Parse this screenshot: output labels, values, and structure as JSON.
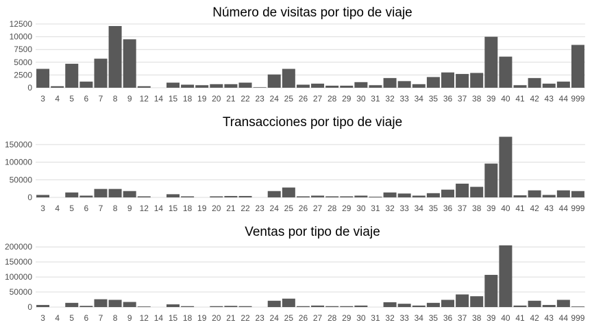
{
  "chart_data": [
    {
      "type": "bar",
      "title": "Número de visitas por tipo de viaje",
      "xlabel": "",
      "ylabel": "",
      "ylim": [
        0,
        12500
      ],
      "yticks": [
        0,
        2500,
        5000,
        7500,
        10000,
        12500
      ],
      "ytick_labels": [
        "0",
        "2500",
        "5000",
        "7500",
        "10000",
        "12500"
      ],
      "grid": true,
      "bar_color": "#595959",
      "categories": [
        "3",
        "4",
        "5",
        "6",
        "7",
        "8",
        "9",
        "12",
        "14",
        "15",
        "18",
        "19",
        "20",
        "21",
        "22",
        "23",
        "24",
        "25",
        "26",
        "27",
        "28",
        "29",
        "30",
        "31",
        "32",
        "33",
        "34",
        "35",
        "36",
        "37",
        "38",
        "39",
        "40",
        "41",
        "42",
        "43",
        "44",
        "999"
      ],
      "values": [
        3700,
        300,
        4700,
        1200,
        5700,
        12100,
        9500,
        300,
        0,
        1000,
        600,
        500,
        700,
        700,
        1000,
        100,
        2600,
        3700,
        600,
        800,
        400,
        400,
        1100,
        500,
        1900,
        1300,
        700,
        2100,
        3000,
        2700,
        2900,
        10000,
        6100,
        500,
        1900,
        800,
        1200,
        8400
      ]
    },
    {
      "type": "bar",
      "title": "Transacciones por tipo de viaje",
      "xlabel": "",
      "ylabel": "",
      "ylim": [
        0,
        175000
      ],
      "yticks": [
        0,
        50000,
        100000,
        150000
      ],
      "ytick_labels": [
        "0",
        "50000",
        "100000",
        "150000"
      ],
      "grid": true,
      "bar_color": "#595959",
      "categories": [
        "3",
        "4",
        "5",
        "6",
        "7",
        "8",
        "9",
        "12",
        "14",
        "15",
        "18",
        "19",
        "20",
        "21",
        "22",
        "23",
        "24",
        "25",
        "26",
        "27",
        "28",
        "29",
        "30",
        "31",
        "32",
        "33",
        "34",
        "35",
        "36",
        "37",
        "38",
        "39",
        "40",
        "41",
        "42",
        "43",
        "44",
        "999"
      ],
      "values": [
        7000,
        0,
        14000,
        5000,
        24000,
        24000,
        18000,
        3000,
        0,
        9000,
        3000,
        0,
        3000,
        4000,
        4000,
        0,
        18000,
        28000,
        3000,
        5000,
        3000,
        3000,
        5000,
        2000,
        14000,
        11000,
        5000,
        12000,
        22000,
        39000,
        30000,
        96000,
        172000,
        6000,
        20000,
        7000,
        20000,
        18000
      ]
    },
    {
      "type": "bar",
      "title": "Ventas por tipo de viaje",
      "xlabel": "",
      "ylabel": "",
      "ylim": [
        0,
        205000
      ],
      "yticks": [
        0,
        50000,
        100000,
        150000,
        200000
      ],
      "ytick_labels": [
        "0",
        "50000",
        "100000",
        "150000",
        "200000"
      ],
      "grid": true,
      "bar_color": "#595959",
      "categories": [
        "3",
        "4",
        "5",
        "6",
        "7",
        "8",
        "9",
        "12",
        "14",
        "15",
        "18",
        "19",
        "20",
        "21",
        "22",
        "23",
        "24",
        "25",
        "26",
        "27",
        "28",
        "29",
        "30",
        "31",
        "32",
        "33",
        "34",
        "35",
        "36",
        "37",
        "38",
        "39",
        "40",
        "41",
        "42",
        "43",
        "44",
        "999"
      ],
      "values": [
        7000,
        0,
        14000,
        4000,
        26000,
        24000,
        17000,
        2000,
        0,
        9000,
        3000,
        0,
        3000,
        4000,
        3000,
        0,
        21000,
        28000,
        3000,
        5000,
        3000,
        3000,
        5000,
        0,
        16000,
        11000,
        5000,
        14000,
        24000,
        42000,
        36000,
        107000,
        205000,
        5000,
        21000,
        7000,
        24000,
        2000
      ]
    }
  ]
}
